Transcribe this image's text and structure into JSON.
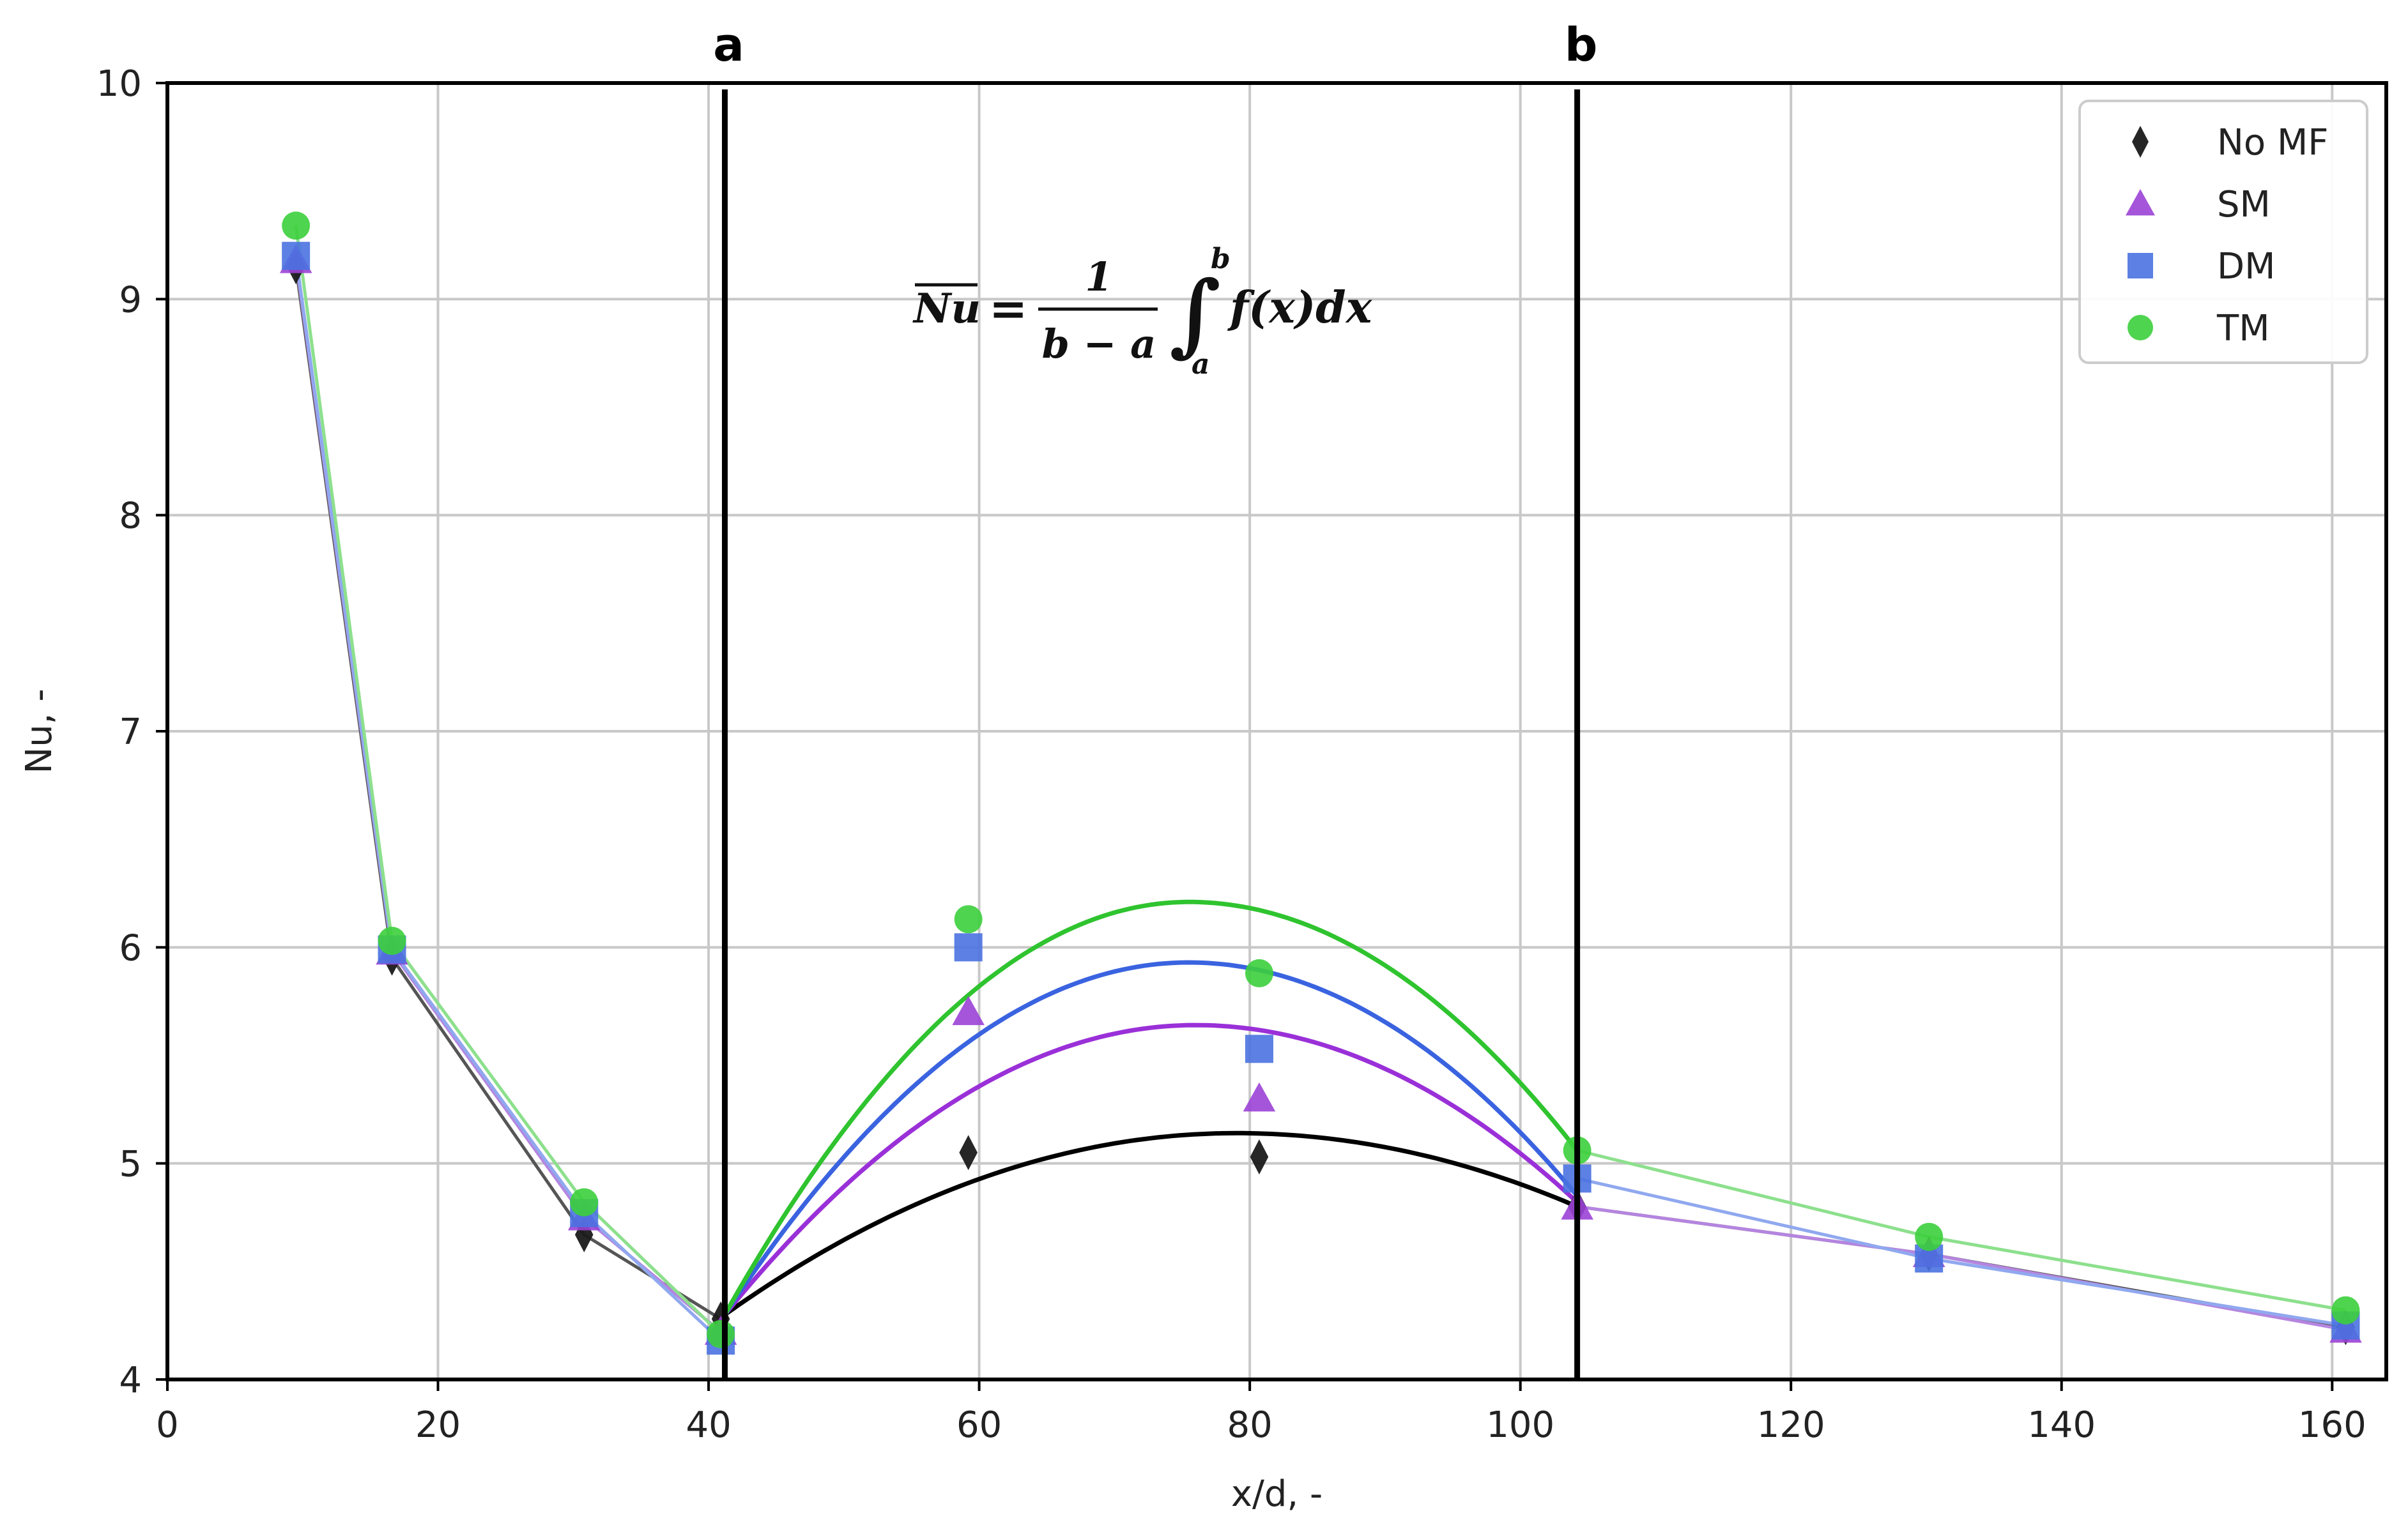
{
  "chart_data": {
    "type": "line",
    "xlabel": "x/d, -",
    "ylabel": "Nu, -",
    "xlim": [
      0,
      164
    ],
    "ylim": [
      4,
      10
    ],
    "xticks": [
      0,
      20,
      40,
      60,
      80,
      100,
      120,
      140,
      160
    ],
    "yticks": [
      4,
      5,
      6,
      7,
      8,
      9,
      10
    ],
    "grid": true,
    "legend_position": "top-right",
    "vertical_markers": [
      {
        "label": "a",
        "x": 41.2
      },
      {
        "label": "b",
        "x": 104.2
      }
    ],
    "formula": {
      "lhs": "Nu",
      "equals": "=",
      "numerator": "1",
      "denominator": "b − a",
      "integral": "∫",
      "upper": "b",
      "lower": "a",
      "integrand": "f(x)dx"
    },
    "series": [
      {
        "name": "No MF",
        "marker": "diamond",
        "color": "#1a1a1a",
        "line_color": "#555555",
        "fit_color": "#000000",
        "points": [
          [
            9.5,
            9.15
          ],
          [
            16.6,
            5.95
          ],
          [
            30.8,
            4.67
          ],
          [
            40.9,
            4.28
          ],
          [
            59.2,
            5.05
          ],
          [
            80.7,
            5.03
          ],
          [
            104.2,
            4.8
          ],
          [
            130.2,
            4.58
          ],
          [
            161.0,
            4.24
          ]
        ],
        "fit": {
          "x0": 41.2,
          "y0": 4.3,
          "xv": 79,
          "yv": 5.14,
          "x1": 104.2,
          "y1": 4.8
        }
      },
      {
        "name": "SM",
        "marker": "triangle",
        "color": "#9b42d6",
        "line_color": "#b585e0",
        "fit_color": "#9a30d8",
        "points": [
          [
            9.5,
            9.18
          ],
          [
            16.6,
            5.98
          ],
          [
            30.8,
            4.75
          ],
          [
            40.9,
            4.22
          ],
          [
            59.2,
            5.7
          ],
          [
            80.7,
            5.3
          ],
          [
            104.2,
            4.8
          ],
          [
            130.2,
            4.58
          ],
          [
            161.0,
            4.23
          ]
        ],
        "fit": {
          "x0": 41.2,
          "y0": 4.3,
          "xv": 76,
          "yv": 5.64,
          "x1": 104.2,
          "y1": 4.82
        }
      },
      {
        "name": "DM",
        "marker": "square",
        "color": "#4a72e0",
        "line_color": "#90a8ef",
        "fit_color": "#3a63e0",
        "points": [
          [
            9.5,
            9.2
          ],
          [
            16.6,
            5.99
          ],
          [
            30.8,
            4.77
          ],
          [
            40.9,
            4.18
          ],
          [
            59.2,
            6.0
          ],
          [
            80.7,
            5.53
          ],
          [
            104.2,
            4.93
          ],
          [
            130.2,
            4.56
          ],
          [
            161.0,
            4.25
          ]
        ],
        "fit": {
          "x0": 41.2,
          "y0": 4.3,
          "xv": 75.5,
          "yv": 5.93,
          "x1": 104.2,
          "y1": 4.85
        }
      },
      {
        "name": "TM",
        "marker": "circle",
        "color": "#3ccf3c",
        "line_color": "#8de08d",
        "fit_color": "#2fc42f",
        "points": [
          [
            9.5,
            9.34
          ],
          [
            16.6,
            6.03
          ],
          [
            30.8,
            4.82
          ],
          [
            40.9,
            4.21
          ],
          [
            59.2,
            6.13
          ],
          [
            80.7,
            5.88
          ],
          [
            104.2,
            5.06
          ],
          [
            130.2,
            4.66
          ],
          [
            161.0,
            4.32
          ]
        ],
        "fit": {
          "x0": 41.2,
          "y0": 4.3,
          "xv": 75.5,
          "yv": 6.21,
          "x1": 104.2,
          "y1": 5.06
        }
      }
    ]
  }
}
